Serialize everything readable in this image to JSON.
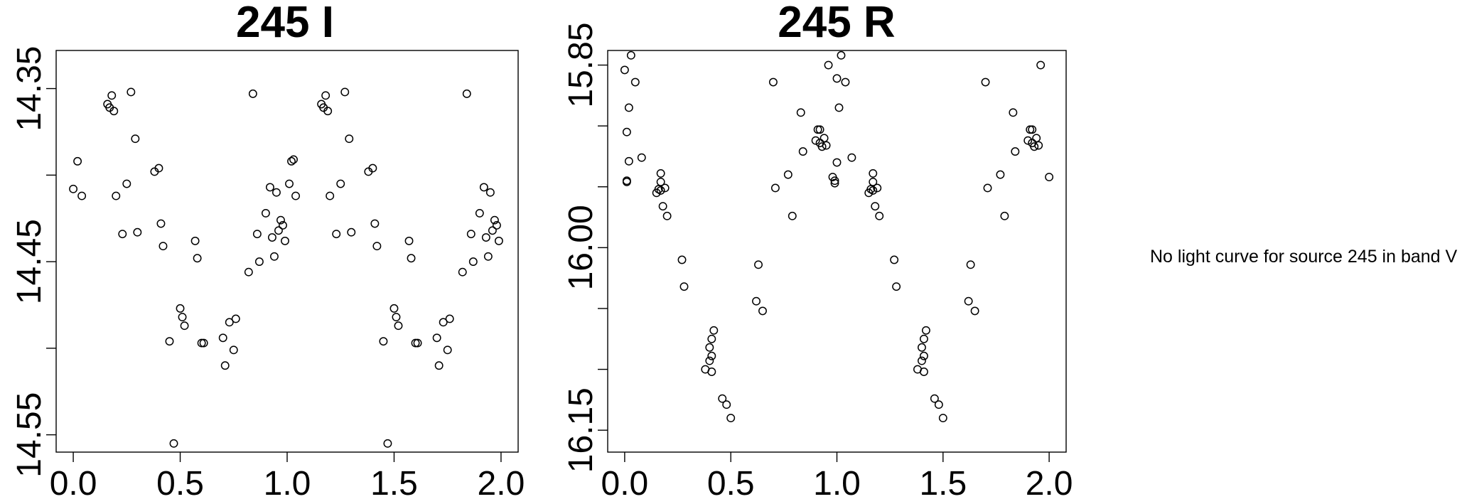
{
  "chart_data": [
    {
      "type": "scatter",
      "title": "245 I",
      "xlabel": "",
      "ylabel": "",
      "xlim": [
        -0.08,
        2.08
      ],
      "ylim": [
        14.56,
        14.328
      ],
      "y_inverted": true,
      "x_ticks": [
        0.0,
        0.5,
        1.0,
        1.5,
        2.0
      ],
      "x_tick_labels": [
        "0.0",
        "0.5",
        "1.0",
        "1.5",
        "2.0"
      ],
      "y_ticks": [
        14.35,
        14.4,
        14.45,
        14.5,
        14.55
      ],
      "y_tick_labels": [
        "14.35",
        "",
        "14.45",
        "",
        "14.55"
      ],
      "points": [
        [
          0.0,
          14.408
        ],
        [
          0.02,
          14.392
        ],
        [
          0.04,
          14.412
        ],
        [
          0.16,
          14.359
        ],
        [
          0.17,
          14.361
        ],
        [
          0.18,
          14.354
        ],
        [
          0.19,
          14.363
        ],
        [
          0.2,
          14.412
        ],
        [
          0.23,
          14.434
        ],
        [
          0.25,
          14.405
        ],
        [
          0.27,
          14.352
        ],
        [
          0.29,
          14.379
        ],
        [
          0.3,
          14.433
        ],
        [
          0.38,
          14.398
        ],
        [
          0.4,
          14.396
        ],
        [
          0.41,
          14.428
        ],
        [
          0.42,
          14.441
        ],
        [
          0.45,
          14.496
        ],
        [
          0.47,
          14.555
        ],
        [
          0.5,
          14.477
        ],
        [
          0.51,
          14.482
        ],
        [
          0.52,
          14.487
        ],
        [
          0.57,
          14.438
        ],
        [
          0.58,
          14.448
        ],
        [
          0.6,
          14.497
        ],
        [
          0.61,
          14.497
        ],
        [
          0.7,
          14.494
        ],
        [
          0.71,
          14.51
        ],
        [
          0.73,
          14.485
        ],
        [
          0.75,
          14.501
        ],
        [
          0.76,
          14.483
        ],
        [
          0.82,
          14.456
        ],
        [
          0.84,
          14.353
        ],
        [
          0.86,
          14.434
        ],
        [
          0.87,
          14.45
        ],
        [
          0.9,
          14.422
        ],
        [
          0.92,
          14.407
        ],
        [
          0.93,
          14.436
        ],
        [
          0.94,
          14.447
        ],
        [
          0.95,
          14.41
        ],
        [
          0.96,
          14.432
        ],
        [
          0.97,
          14.426
        ],
        [
          0.98,
          14.429
        ],
        [
          0.99,
          14.438
        ],
        [
          1.01,
          14.405
        ],
        [
          1.02,
          14.392
        ],
        [
          1.03,
          14.391
        ],
        [
          1.04,
          14.412
        ],
        [
          1.16,
          14.359
        ],
        [
          1.17,
          14.361
        ],
        [
          1.18,
          14.354
        ],
        [
          1.19,
          14.363
        ],
        [
          1.2,
          14.412
        ],
        [
          1.23,
          14.434
        ],
        [
          1.25,
          14.405
        ],
        [
          1.27,
          14.352
        ],
        [
          1.29,
          14.379
        ],
        [
          1.3,
          14.433
        ],
        [
          1.38,
          14.398
        ],
        [
          1.4,
          14.396
        ],
        [
          1.41,
          14.428
        ],
        [
          1.42,
          14.441
        ],
        [
          1.45,
          14.496
        ],
        [
          1.47,
          14.555
        ],
        [
          1.5,
          14.477
        ],
        [
          1.51,
          14.482
        ],
        [
          1.52,
          14.487
        ],
        [
          1.57,
          14.438
        ],
        [
          1.58,
          14.448
        ],
        [
          1.6,
          14.497
        ],
        [
          1.61,
          14.497
        ],
        [
          1.7,
          14.494
        ],
        [
          1.71,
          14.51
        ],
        [
          1.73,
          14.485
        ],
        [
          1.75,
          14.501
        ],
        [
          1.76,
          14.483
        ],
        [
          1.82,
          14.456
        ],
        [
          1.84,
          14.353
        ],
        [
          1.86,
          14.434
        ],
        [
          1.87,
          14.45
        ],
        [
          1.9,
          14.422
        ],
        [
          1.92,
          14.407
        ],
        [
          1.93,
          14.436
        ],
        [
          1.94,
          14.447
        ],
        [
          1.95,
          14.41
        ],
        [
          1.96,
          14.432
        ],
        [
          1.97,
          14.426
        ],
        [
          1.98,
          14.429
        ],
        [
          1.99,
          14.438
        ]
      ]
    },
    {
      "type": "scatter",
      "title": "245 R",
      "xlabel": "",
      "ylabel": "",
      "xlim": [
        -0.08,
        2.08
      ],
      "ylim": [
        16.168,
        15.838
      ],
      "y_inverted": true,
      "x_ticks": [
        0.0,
        0.5,
        1.0,
        1.5,
        2.0
      ],
      "x_tick_labels": [
        "0.0",
        "0.5",
        "1.0",
        "1.5",
        "2.0"
      ],
      "y_ticks": [
        15.85,
        15.9,
        15.95,
        16.0,
        16.05,
        16.1,
        16.15
      ],
      "y_tick_labels": [
        "15.85",
        "",
        "",
        "16.00",
        "",
        "",
        "16.15"
      ],
      "points": [
        [
          0.0,
          15.854
        ],
        [
          0.01,
          15.945
        ],
        [
          0.01,
          15.905
        ],
        [
          0.01,
          15.946
        ],
        [
          0.02,
          15.885
        ],
        [
          0.02,
          15.929
        ],
        [
          0.03,
          15.842
        ],
        [
          0.05,
          15.864
        ],
        [
          0.08,
          15.926
        ],
        [
          0.15,
          15.955
        ],
        [
          0.16,
          15.952
        ],
        [
          0.17,
          15.946
        ],
        [
          0.17,
          15.939
        ],
        [
          0.17,
          15.953
        ],
        [
          0.18,
          15.966
        ],
        [
          0.19,
          15.951
        ],
        [
          0.2,
          15.974
        ],
        [
          0.27,
          16.01
        ],
        [
          0.28,
          16.032
        ],
        [
          0.38,
          16.1
        ],
        [
          0.4,
          16.093
        ],
        [
          0.4,
          16.082
        ],
        [
          0.41,
          16.089
        ],
        [
          0.41,
          16.075
        ],
        [
          0.41,
          16.102
        ],
        [
          0.42,
          16.068
        ],
        [
          0.46,
          16.124
        ],
        [
          0.48,
          16.129
        ],
        [
          0.5,
          16.14
        ],
        [
          0.62,
          16.044
        ],
        [
          0.63,
          16.014
        ],
        [
          0.65,
          16.052
        ],
        [
          0.7,
          15.864
        ],
        [
          0.71,
          15.951
        ],
        [
          0.77,
          15.94
        ],
        [
          0.79,
          15.974
        ],
        [
          0.83,
          15.889
        ],
        [
          0.84,
          15.921
        ],
        [
          0.9,
          15.912
        ],
        [
          0.91,
          15.903
        ],
        [
          0.92,
          15.903
        ],
        [
          0.92,
          15.914
        ],
        [
          0.93,
          15.917
        ],
        [
          0.94,
          15.91
        ],
        [
          0.95,
          15.916
        ],
        [
          0.96,
          15.85
        ],
        [
          0.98,
          15.942
        ],
        [
          0.99,
          15.947
        ],
        [
          0.99,
          15.945
        ],
        [
          1.0,
          15.861
        ],
        [
          1.0,
          15.93
        ],
        [
          1.01,
          15.885
        ],
        [
          1.02,
          15.842
        ],
        [
          1.04,
          15.864
        ],
        [
          1.07,
          15.926
        ],
        [
          1.15,
          15.955
        ],
        [
          1.16,
          15.952
        ],
        [
          1.17,
          15.946
        ],
        [
          1.17,
          15.939
        ],
        [
          1.17,
          15.953
        ],
        [
          1.18,
          15.966
        ],
        [
          1.19,
          15.951
        ],
        [
          1.2,
          15.974
        ],
        [
          1.27,
          16.01
        ],
        [
          1.28,
          16.032
        ],
        [
          1.38,
          16.1
        ],
        [
          1.4,
          16.093
        ],
        [
          1.4,
          16.082
        ],
        [
          1.41,
          16.089
        ],
        [
          1.41,
          16.075
        ],
        [
          1.41,
          16.102
        ],
        [
          1.42,
          16.068
        ],
        [
          1.46,
          16.124
        ],
        [
          1.48,
          16.129
        ],
        [
          1.5,
          16.14
        ],
        [
          1.62,
          16.044
        ],
        [
          1.63,
          16.014
        ],
        [
          1.65,
          16.052
        ],
        [
          1.7,
          15.864
        ],
        [
          1.71,
          15.951
        ],
        [
          1.77,
          15.94
        ],
        [
          1.79,
          15.974
        ],
        [
          1.83,
          15.889
        ],
        [
          1.84,
          15.921
        ],
        [
          1.9,
          15.912
        ],
        [
          1.91,
          15.903
        ],
        [
          1.92,
          15.903
        ],
        [
          1.92,
          15.914
        ],
        [
          1.93,
          15.917
        ],
        [
          1.94,
          15.91
        ],
        [
          1.95,
          15.916
        ],
        [
          1.96,
          15.85
        ],
        [
          2.0,
          15.942
        ]
      ]
    }
  ],
  "side_note": "No light curve for source 245 in band V",
  "colors": {
    "points": "#000000",
    "background": "#ffffff"
  }
}
